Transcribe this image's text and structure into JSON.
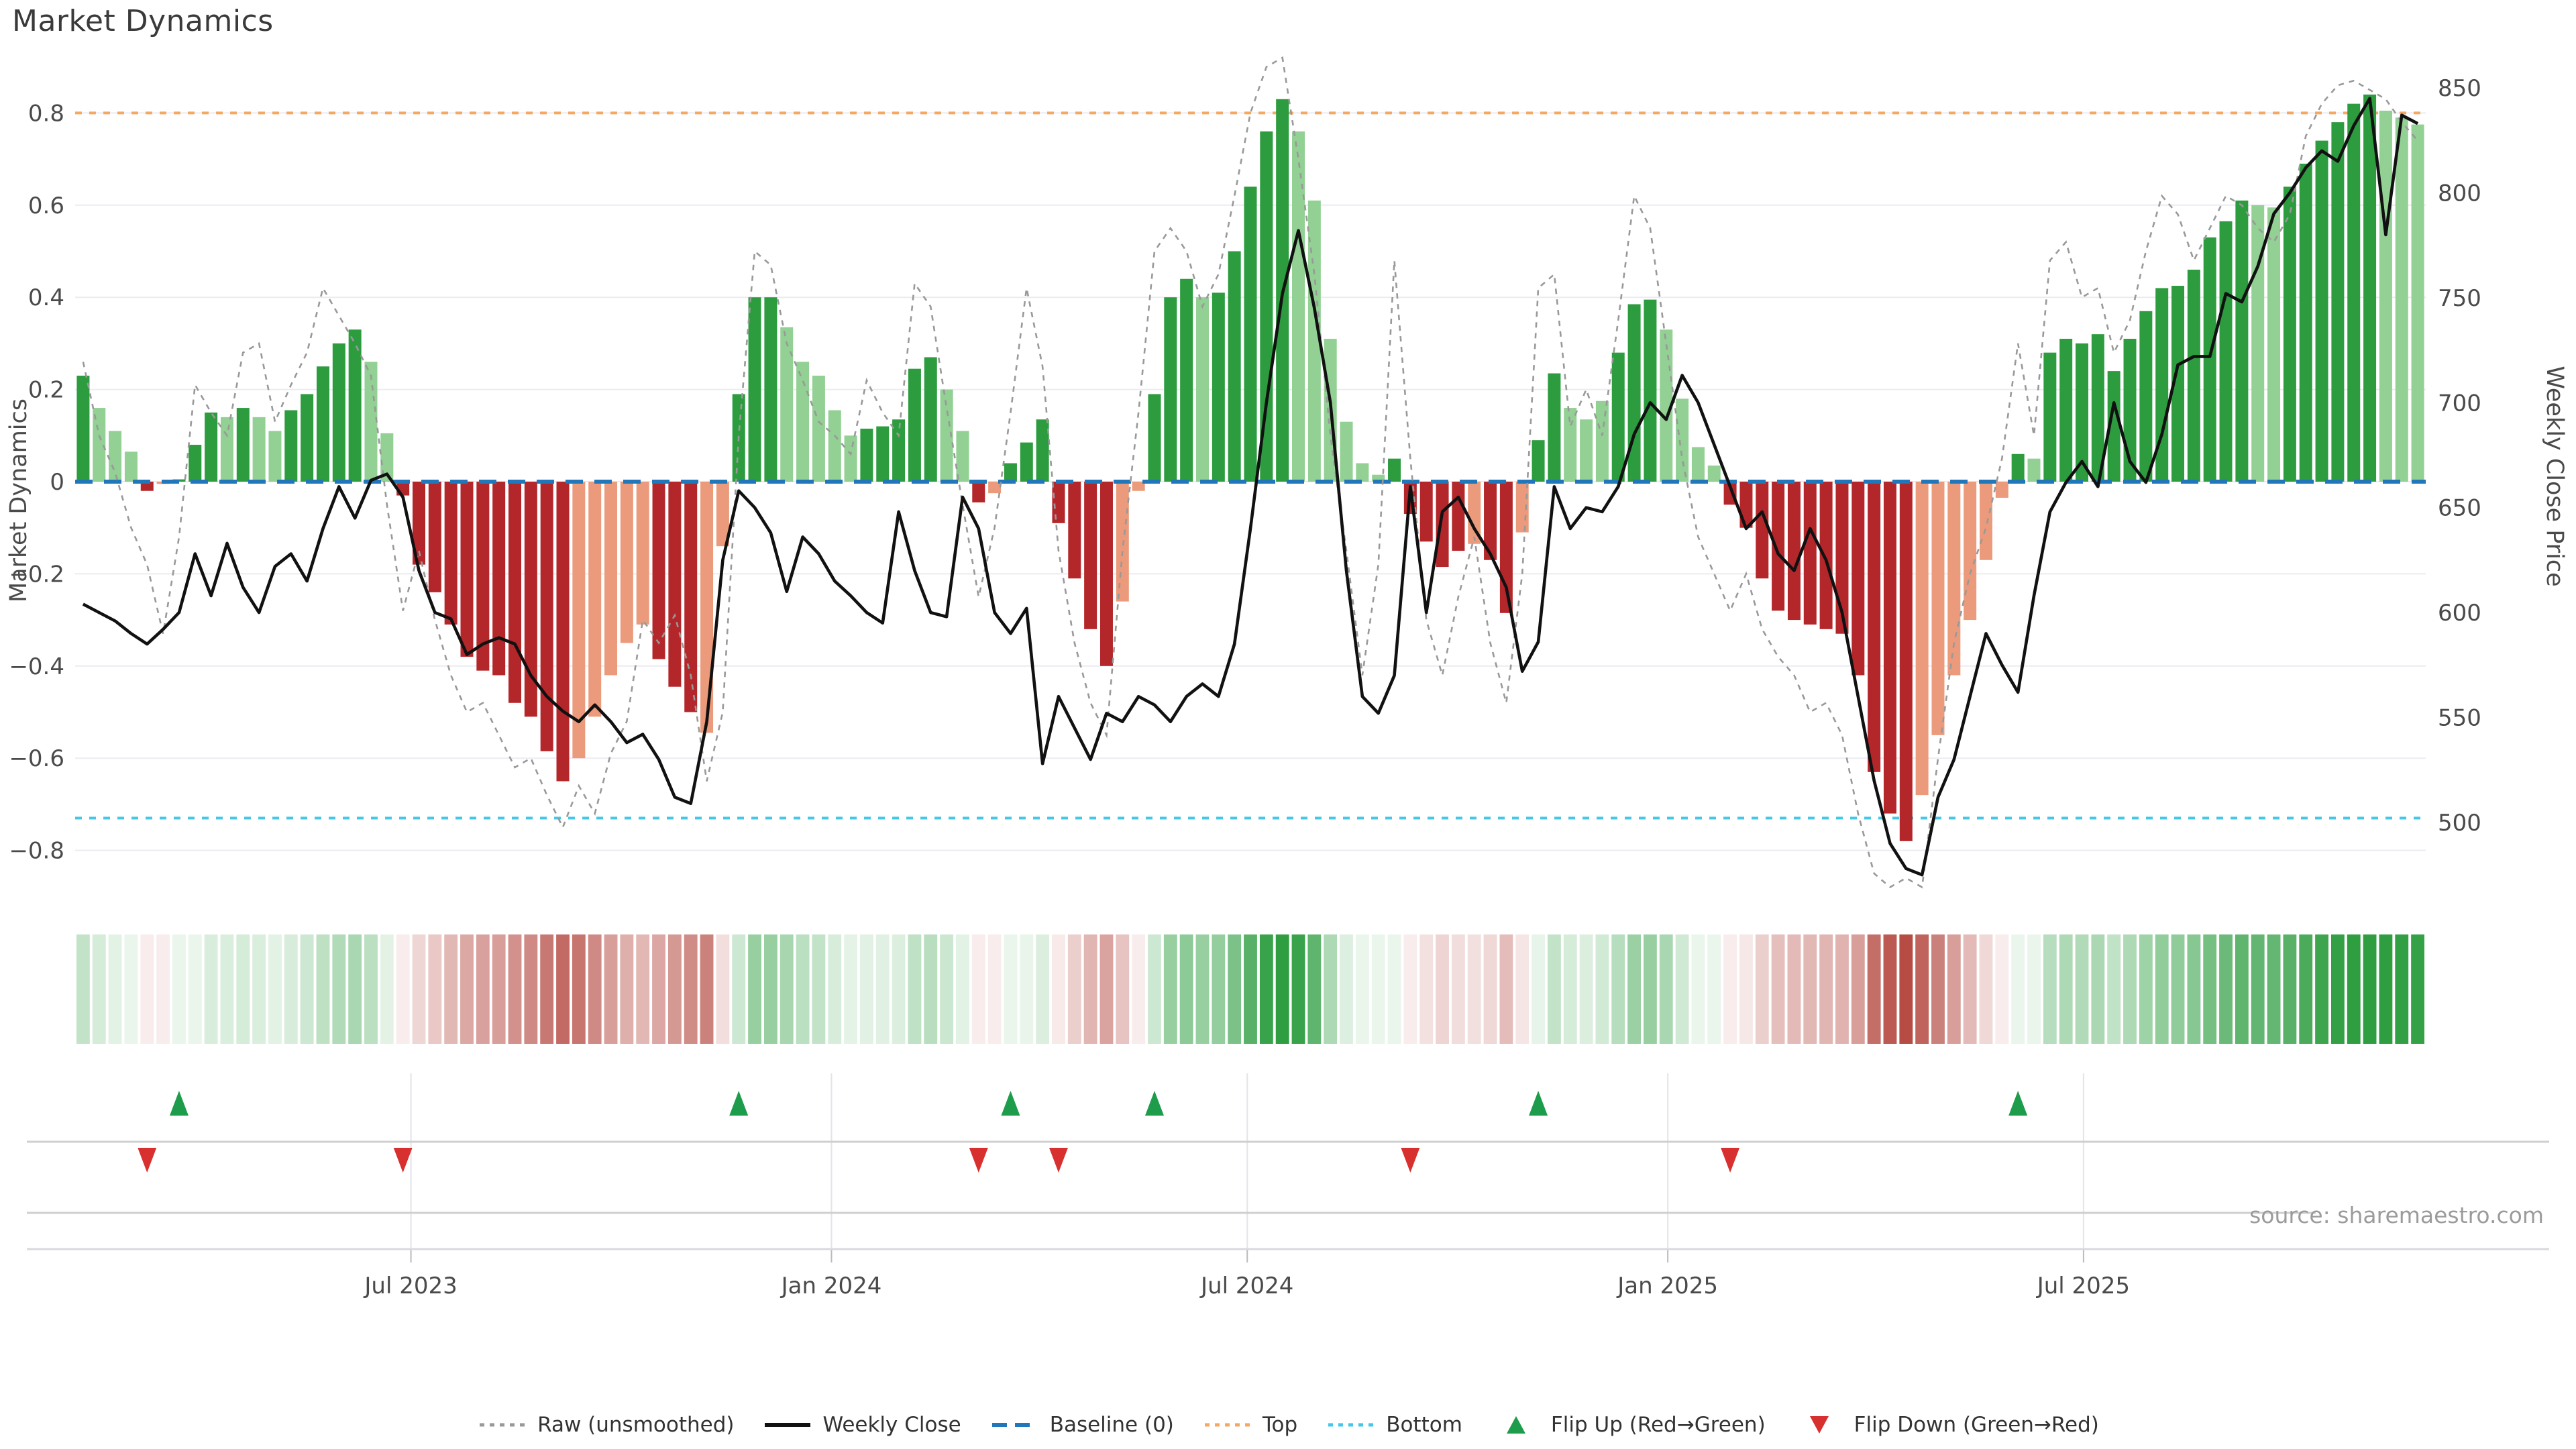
{
  "title": "Market Dynamics",
  "source": "source: sharemaestro.com",
  "axes": {
    "left": {
      "title": "Market Dynamics",
      "ticks": [
        0.8,
        0.6,
        0.4,
        0.2,
        0,
        -0.2,
        -0.4,
        -0.6,
        -0.8
      ]
    },
    "right": {
      "title": "Weekly Close Price",
      "ticks": [
        850,
        800,
        750,
        700,
        650,
        600,
        550,
        500
      ]
    },
    "x": {
      "ticks": [
        {
          "label": "Jul 2023",
          "week": 21
        },
        {
          "label": "Jan 2024",
          "week": 47.3
        },
        {
          "label": "Jul 2024",
          "week": 73.3
        },
        {
          "label": "Jan 2025",
          "week": 99.6
        },
        {
          "label": "Jul 2025",
          "week": 125.6
        }
      ]
    }
  },
  "reference_lines": {
    "baseline": {
      "label": "Baseline (0)",
      "value": 0,
      "color": "#2277bb",
      "style": "dashed"
    },
    "top": {
      "label": "Top",
      "value": 0.8,
      "color": "#f6a860",
      "style": "dotted"
    },
    "bottom": {
      "label": "Bottom",
      "value": -0.73,
      "color": "#45c8e8",
      "style": "dotted"
    }
  },
  "colors": {
    "bar_dark_green": "#2c9c3f",
    "bar_light_green": "#92d094",
    "bar_dark_red": "#b3272b",
    "bar_salmon": "#eb9b7c",
    "close_line": "#111111",
    "raw_line": "#999999",
    "flip_up": "#1d9d4b",
    "flip_down": "#d7302e",
    "grid": "#ebebf2",
    "heat_green_max": "#2e9e41",
    "heat_red_max": "#b4473f"
  },
  "legend": {
    "items": [
      {
        "type": "line-dotted",
        "color": "#999999",
        "label": "Raw (unsmoothed)"
      },
      {
        "type": "line-solid",
        "color": "#111111",
        "label": "Weekly Close"
      },
      {
        "type": "line-dashed",
        "color": "#2277bb",
        "label": "Baseline (0)"
      },
      {
        "type": "line-dotted",
        "color": "#f6a860",
        "label": "Top"
      },
      {
        "type": "line-dotted",
        "color": "#45c8e8",
        "label": "Bottom"
      },
      {
        "type": "triangle-up",
        "color": "#1d9d4b",
        "label": "Flip Up (Red→Green)"
      },
      {
        "type": "triangle-down",
        "color": "#d7302e",
        "label": "Flip Down (Green→Red)"
      }
    ]
  },
  "chart_data": {
    "type": "bar+line",
    "x_unit": "weekly, Feb 2023 – Oct 2025 (147 weeks)",
    "left_ylim": [
      -0.95,
      0.95
    ],
    "right_ylim": [
      460,
      860
    ],
    "grid": "horizontal only",
    "legend_position": "bottom center",
    "bars": {
      "name": "Market Dynamics",
      "shade_key": {
        "D": "dark green",
        "L": "light green",
        "R": "dark red",
        "S": "salmon"
      },
      "values": [
        0.23,
        0.16,
        0.11,
        0.065,
        -0.02,
        -0.005,
        0.005,
        0.08,
        0.15,
        0.14,
        0.16,
        0.14,
        0.11,
        0.155,
        0.19,
        0.25,
        0.3,
        0.33,
        0.26,
        0.105,
        -0.03,
        -0.18,
        -0.24,
        -0.31,
        -0.38,
        -0.41,
        -0.42,
        -0.48,
        -0.51,
        -0.585,
        -0.65,
        -0.6,
        -0.51,
        -0.42,
        -0.35,
        -0.31,
        -0.385,
        -0.445,
        -0.5,
        -0.545,
        -0.14,
        0.19,
        0.4,
        0.4,
        0.335,
        0.26,
        0.23,
        0.155,
        0.1,
        0.115,
        0.12,
        0.135,
        0.245,
        0.27,
        0.2,
        0.11,
        -0.045,
        -0.025,
        0.04,
        0.085,
        0.135,
        -0.09,
        -0.21,
        -0.32,
        -0.4,
        -0.26,
        -0.02,
        0.19,
        0.4,
        0.44,
        0.4,
        0.41,
        0.5,
        0.64,
        0.76,
        0.83,
        0.76,
        0.61,
        0.31,
        0.13,
        0.04,
        0.015,
        0.05,
        -0.07,
        -0.13,
        -0.185,
        -0.15,
        -0.135,
        -0.17,
        -0.285,
        -0.11,
        0.09,
        0.235,
        0.16,
        0.135,
        0.175,
        0.28,
        0.385,
        0.395,
        0.33,
        0.18,
        0.075,
        0.035,
        -0.05,
        -0.1,
        -0.21,
        -0.28,
        -0.3,
        -0.31,
        -0.32,
        -0.33,
        -0.42,
        -0.63,
        -0.72,
        -0.78,
        -0.68,
        -0.55,
        -0.42,
        -0.3,
        -0.17,
        -0.035,
        0.06,
        0.05,
        0.28,
        0.31,
        0.3,
        0.32,
        0.24,
        0.31,
        0.37,
        0.42,
        0.425,
        0.46,
        0.53,
        0.565,
        0.61,
        0.6,
        0.595,
        0.64,
        0.69,
        0.74,
        0.78,
        0.82,
        0.84,
        0.805,
        0.79,
        0.775
      ],
      "shades": [
        "D",
        "L",
        "L",
        "L",
        "R",
        "S",
        "D",
        "D",
        "D",
        "L",
        "D",
        "L",
        "L",
        "D",
        "D",
        "D",
        "D",
        "D",
        "L",
        "L",
        "R",
        "R",
        "R",
        "R",
        "R",
        "R",
        "R",
        "R",
        "R",
        "R",
        "R",
        "S",
        "S",
        "S",
        "S",
        "S",
        "R",
        "R",
        "R",
        "S",
        "S",
        "D",
        "D",
        "D",
        "L",
        "L",
        "L",
        "L",
        "L",
        "D",
        "D",
        "D",
        "D",
        "D",
        "L",
        "L",
        "R",
        "S",
        "D",
        "D",
        "D",
        "R",
        "R",
        "R",
        "R",
        "S",
        "S",
        "D",
        "D",
        "D",
        "L",
        "D",
        "D",
        "D",
        "D",
        "D",
        "L",
        "L",
        "L",
        "L",
        "L",
        "L",
        "D",
        "R",
        "R",
        "R",
        "R",
        "S",
        "R",
        "R",
        "S",
        "D",
        "D",
        "L",
        "L",
        "L",
        "D",
        "D",
        "D",
        "L",
        "L",
        "L",
        "L",
        "R",
        "R",
        "R",
        "R",
        "R",
        "R",
        "R",
        "R",
        "R",
        "R",
        "R",
        "R",
        "S",
        "S",
        "S",
        "S",
        "S",
        "S",
        "D",
        "L",
        "D",
        "D",
        "D",
        "D",
        "D",
        "D",
        "D",
        "D",
        "D",
        "D",
        "D",
        "D",
        "D",
        "L",
        "L",
        "D",
        "D",
        "D",
        "D",
        "D",
        "D",
        "L",
        "L",
        "L"
      ]
    },
    "weekly_close": {
      "name": "Weekly Close",
      "values": [
        604,
        600,
        596,
        590,
        585,
        592,
        600,
        628,
        608,
        633,
        612,
        600,
        622,
        628,
        615,
        640,
        660,
        645,
        663,
        666,
        655,
        620,
        600,
        597,
        580,
        585,
        588,
        585,
        570,
        560,
        553,
        548,
        556,
        548,
        538,
        542,
        530,
        512,
        509,
        548,
        625,
        658,
        650,
        638,
        610,
        636,
        628,
        615,
        608,
        600,
        595,
        648,
        620,
        600,
        598,
        655,
        640,
        600,
        590,
        602,
        528,
        560,
        545,
        530,
        552,
        548,
        560,
        556,
        548,
        560,
        566,
        560,
        585,
        640,
        700,
        752,
        782,
        745,
        700,
        620,
        560,
        552,
        570,
        660,
        600,
        648,
        655,
        640,
        628,
        612,
        572,
        586,
        660,
        640,
        650,
        648,
        660,
        685,
        700,
        692,
        713,
        700,
        680,
        660,
        640,
        648,
        628,
        620,
        640,
        625,
        600,
        560,
        520,
        490,
        478,
        475,
        512,
        530,
        560,
        590,
        575,
        562,
        608,
        648,
        662,
        672,
        660,
        700,
        672,
        662,
        685,
        718,
        722,
        722,
        752,
        748,
        765,
        790,
        800,
        812,
        820,
        815,
        832,
        845,
        780,
        837,
        833
      ]
    },
    "raw_unsmoothed": {
      "name": "Raw (unsmoothed)",
      "values": [
        0.26,
        0.1,
        0.02,
        -0.1,
        -0.18,
        -0.33,
        -0.12,
        0.21,
        0.15,
        0.1,
        0.28,
        0.3,
        0.13,
        0.21,
        0.28,
        0.42,
        0.36,
        0.3,
        0.23,
        -0.05,
        -0.28,
        -0.15,
        -0.3,
        -0.42,
        -0.5,
        -0.48,
        -0.55,
        -0.62,
        -0.6,
        -0.68,
        -0.75,
        -0.66,
        -0.72,
        -0.59,
        -0.52,
        -0.3,
        -0.35,
        -0.29,
        -0.42,
        -0.65,
        -0.5,
        0.1,
        0.5,
        0.47,
        0.3,
        0.22,
        0.13,
        0.1,
        0.06,
        0.22,
        0.15,
        0.1,
        0.43,
        0.38,
        0.16,
        -0.05,
        -0.25,
        -0.1,
        0.15,
        0.42,
        0.25,
        -0.15,
        -0.35,
        -0.48,
        -0.55,
        -0.15,
        0.15,
        0.5,
        0.55,
        0.5,
        0.38,
        0.45,
        0.62,
        0.8,
        0.9,
        0.92,
        0.7,
        0.45,
        0.1,
        -0.15,
        -0.42,
        -0.18,
        0.48,
        0.05,
        -0.3,
        -0.42,
        -0.25,
        -0.12,
        -0.35,
        -0.48,
        -0.2,
        0.42,
        0.45,
        0.12,
        0.2,
        0.1,
        0.35,
        0.62,
        0.55,
        0.3,
        0.05,
        -0.12,
        -0.2,
        -0.28,
        -0.2,
        -0.32,
        -0.38,
        -0.42,
        -0.5,
        -0.48,
        -0.55,
        -0.72,
        -0.85,
        -0.88,
        -0.86,
        -0.88,
        -0.6,
        -0.35,
        -0.2,
        -0.1,
        0.05,
        0.3,
        0.1,
        0.48,
        0.52,
        0.4,
        0.42,
        0.28,
        0.35,
        0.5,
        0.62,
        0.58,
        0.48,
        0.55,
        0.62,
        0.6,
        0.55,
        0.52,
        0.58,
        0.75,
        0.82,
        0.86,
        0.87,
        0.85,
        0.83,
        0.78,
        0.74
      ]
    },
    "flip_up_weeks": [
      6,
      41,
      58,
      67,
      91,
      121
    ],
    "flip_down_weeks": [
      4,
      20,
      56,
      61,
      83,
      103
    ],
    "heatmap": "color strip derived from bar values (white→green positive, white→red negative)"
  }
}
